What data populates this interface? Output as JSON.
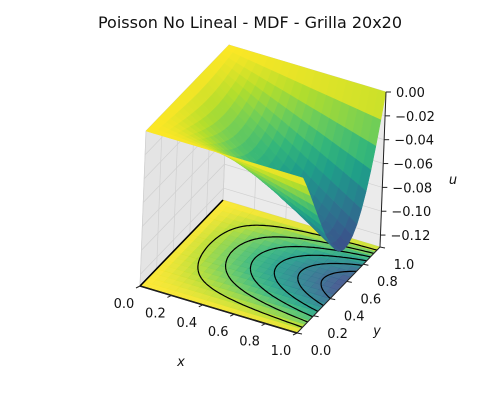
{
  "chart_data": {
    "type": "surface3d",
    "title": "Poisson No Lineal - MDF - Grilla 20x20",
    "xlabel": "x",
    "ylabel": "y",
    "zlabel": "u",
    "xlim": [
      0,
      1
    ],
    "ylim": [
      0,
      1
    ],
    "zlim": [
      -0.13,
      0.0
    ],
    "xticks": [
      "0.0",
      "0.2",
      "0.4",
      "0.6",
      "0.8",
      "1.0"
    ],
    "yticks": [
      "0.0",
      "0.2",
      "0.4",
      "0.6",
      "0.8",
      "1.0"
    ],
    "zticks": [
      "0.00",
      "−0.02",
      "−0.04",
      "−0.06",
      "−0.08",
      "−0.10",
      "−0.12"
    ],
    "grid": 20,
    "colormap": "viridis",
    "surface_min": -0.13,
    "surface_max": 0.0,
    "contour_levels": 8,
    "contour_style": "dashed black"
  }
}
